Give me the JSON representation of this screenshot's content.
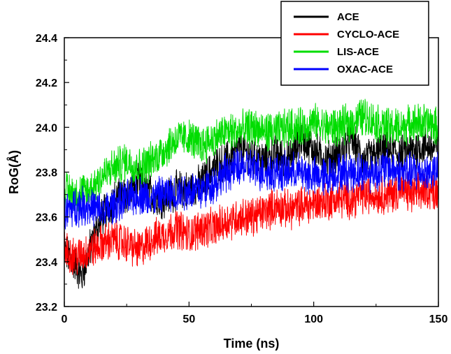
{
  "chart_data": {
    "type": "line",
    "title": "",
    "xlabel": "Time (ns)",
    "ylabel": "RoG(Å)",
    "xlim": [
      0,
      150
    ],
    "ylim": [
      23.2,
      24.4
    ],
    "xticks": [
      0,
      50,
      100,
      150
    ],
    "yticks": [
      23.2,
      23.4,
      23.6,
      23.8,
      24.0,
      24.2,
      24.4
    ],
    "xtick_labels": [
      "0",
      "50",
      "100",
      "150"
    ],
    "ytick_labels": [
      "23.2",
      "23.4",
      "23.6",
      "23.8",
      "24.0",
      "24.2",
      "24.4"
    ],
    "grid": false,
    "legend_position": "top-right",
    "series": [
      {
        "name": "ACE",
        "color": "#000000",
        "x": [
          0,
          5,
          7,
          10,
          15,
          20,
          25,
          30,
          35,
          40,
          45,
          50,
          55,
          60,
          65,
          70,
          75,
          80,
          85,
          90,
          95,
          100,
          105,
          110,
          115,
          120,
          125,
          130,
          135,
          140,
          145,
          150
        ],
        "y": [
          23.45,
          23.38,
          23.33,
          23.45,
          23.6,
          23.68,
          23.7,
          23.75,
          23.7,
          23.68,
          23.72,
          23.72,
          23.75,
          23.82,
          23.85,
          23.9,
          23.88,
          23.85,
          23.88,
          23.85,
          23.95,
          23.9,
          23.85,
          23.88,
          23.95,
          23.85,
          23.88,
          23.9,
          23.88,
          23.9,
          23.92,
          23.9
        ]
      },
      {
        "name": "CYCLO-ACE",
        "color": "#ff0000",
        "x": [
          0,
          5,
          10,
          15,
          20,
          25,
          30,
          35,
          40,
          45,
          50,
          55,
          60,
          65,
          70,
          75,
          80,
          85,
          90,
          95,
          100,
          105,
          110,
          115,
          120,
          125,
          130,
          135,
          140,
          145,
          150
        ],
        "y": [
          23.45,
          23.42,
          23.45,
          23.48,
          23.5,
          23.48,
          23.45,
          23.5,
          23.52,
          23.55,
          23.52,
          23.55,
          23.55,
          23.58,
          23.6,
          23.6,
          23.62,
          23.65,
          23.63,
          23.65,
          23.66,
          23.67,
          23.68,
          23.68,
          23.7,
          23.7,
          23.7,
          23.72,
          23.7,
          23.72,
          23.72
        ]
      },
      {
        "name": "LIS-ACE",
        "color": "#00dd00",
        "x": [
          0,
          5,
          10,
          15,
          20,
          25,
          30,
          35,
          40,
          45,
          50,
          55,
          60,
          65,
          70,
          75,
          80,
          85,
          90,
          95,
          100,
          105,
          110,
          115,
          120,
          125,
          130,
          135,
          140,
          145,
          150
        ],
        "y": [
          23.72,
          23.7,
          23.72,
          23.78,
          23.82,
          23.85,
          23.82,
          23.85,
          23.9,
          23.95,
          23.95,
          23.92,
          23.95,
          23.98,
          23.98,
          24.0,
          23.98,
          23.98,
          24.0,
          24.0,
          24.02,
          24.0,
          24.0,
          24.02,
          24.05,
          24.02,
          24.0,
          24.0,
          24.02,
          24.02,
          24.0
        ]
      },
      {
        "name": "OXAC-ACE",
        "color": "#0000ff",
        "x": [
          0,
          5,
          10,
          15,
          20,
          25,
          30,
          35,
          40,
          45,
          50,
          55,
          60,
          65,
          70,
          75,
          80,
          85,
          90,
          95,
          100,
          105,
          110,
          115,
          120,
          125,
          130,
          135,
          140,
          145,
          150
        ],
        "y": [
          23.62,
          23.65,
          23.65,
          23.62,
          23.65,
          23.68,
          23.7,
          23.68,
          23.7,
          23.7,
          23.72,
          23.72,
          23.75,
          23.8,
          23.82,
          23.82,
          23.8,
          23.8,
          23.8,
          23.8,
          23.78,
          23.78,
          23.8,
          23.8,
          23.8,
          23.8,
          23.82,
          23.8,
          23.8,
          23.8,
          23.8
        ]
      }
    ]
  }
}
